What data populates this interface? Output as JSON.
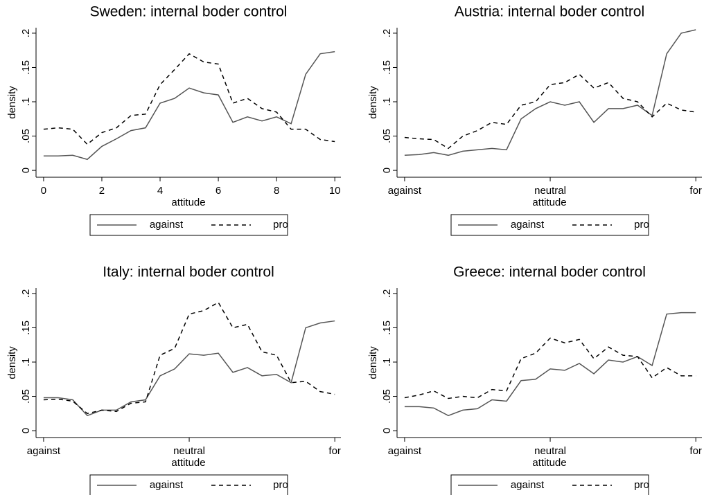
{
  "chart_data": [
    {
      "type": "line",
      "title": "Sweden: internal boder control",
      "xlabel": "attitude",
      "ylabel": "density",
      "x": [
        0,
        0.5,
        1,
        1.5,
        2,
        2.5,
        3,
        3.5,
        4,
        4.5,
        5,
        5.5,
        6,
        6.5,
        7,
        7.5,
        8,
        8.5,
        9,
        9.5,
        10
      ],
      "xlim": [
        -0.26,
        10.21
      ],
      "xticks": [
        0,
        2,
        4,
        6,
        8,
        10
      ],
      "ylim": [
        -0.01,
        0.208
      ],
      "yticks": [
        0,
        {
          "value": 0.05,
          "label": ".05"
        },
        {
          "value": 0.1,
          "label": ".1"
        },
        {
          "value": 0.15,
          "label": ".15"
        },
        {
          "value": 0.2,
          "label": ".2"
        }
      ],
      "series": [
        {
          "name": "against",
          "color": "#555555",
          "style": "solid",
          "values": [
            0.021,
            0.021,
            0.022,
            0.016,
            0.035,
            0.046,
            0.058,
            0.062,
            0.098,
            0.105,
            0.12,
            0.113,
            0.11,
            0.07,
            0.078,
            0.072,
            0.078,
            0.068,
            0.14,
            0.17,
            0.173
          ]
        },
        {
          "name": "pro",
          "color": "#000000",
          "style": "dashed",
          "values": [
            0.06,
            0.062,
            0.06,
            0.038,
            0.055,
            0.062,
            0.08,
            0.082,
            0.125,
            0.147,
            0.17,
            0.158,
            0.155,
            0.098,
            0.105,
            0.09,
            0.085,
            0.06,
            0.06,
            0.045,
            0.042
          ]
        }
      ]
    },
    {
      "type": "line",
      "title": "Austria: internal boder control",
      "xlabel": "attitude",
      "ylabel": "density",
      "x": [
        0,
        0.5,
        1,
        1.5,
        2,
        2.5,
        3,
        3.5,
        4,
        4.5,
        5,
        5.5,
        6,
        6.5,
        7,
        7.5,
        8,
        8.5,
        9,
        9.5,
        10
      ],
      "xlim": [
        -0.26,
        10.21
      ],
      "xticks": [
        {
          "value": 0,
          "label": "against"
        },
        {
          "value": 5,
          "label": "neutral"
        },
        {
          "value": 10,
          "label": "for"
        }
      ],
      "ylim": [
        -0.01,
        0.208
      ],
      "yticks": [
        0,
        {
          "value": 0.05,
          "label": ".05"
        },
        {
          "value": 0.1,
          "label": ".1"
        },
        {
          "value": 0.15,
          "label": ".15"
        },
        {
          "value": 0.2,
          "label": ".2"
        }
      ],
      "series": [
        {
          "name": "against",
          "color": "#555555",
          "style": "solid",
          "values": [
            0.022,
            0.023,
            0.026,
            0.022,
            0.028,
            0.03,
            0.032,
            0.03,
            0.075,
            0.09,
            0.1,
            0.095,
            0.1,
            0.07,
            0.09,
            0.09,
            0.095,
            0.08,
            0.17,
            0.2,
            0.205
          ]
        },
        {
          "name": "pro",
          "color": "#000000",
          "style": "dashed",
          "values": [
            0.048,
            0.046,
            0.045,
            0.032,
            0.05,
            0.058,
            0.07,
            0.067,
            0.095,
            0.1,
            0.125,
            0.128,
            0.14,
            0.12,
            0.128,
            0.105,
            0.1,
            0.078,
            0.098,
            0.088,
            0.085
          ]
        }
      ]
    },
    {
      "type": "line",
      "title": "Italy: internal boder control",
      "xlabel": "attitude",
      "ylabel": "density",
      "x": [
        0,
        0.5,
        1,
        1.5,
        2,
        2.5,
        3,
        3.5,
        4,
        4.5,
        5,
        5.5,
        6,
        6.5,
        7,
        7.5,
        8,
        8.5,
        9,
        9.5,
        10
      ],
      "xlim": [
        -0.26,
        10.21
      ],
      "xticks": [
        {
          "value": 0,
          "label": "against"
        },
        {
          "value": 5,
          "label": "neutral"
        },
        {
          "value": 10,
          "label": "for"
        }
      ],
      "ylim": [
        -0.01,
        0.208
      ],
      "yticks": [
        0,
        {
          "value": 0.05,
          "label": ".05"
        },
        {
          "value": 0.1,
          "label": ".1"
        },
        {
          "value": 0.15,
          "label": ".15"
        },
        {
          "value": 0.2,
          "label": ".2"
        }
      ],
      "series": [
        {
          "name": "against",
          "color": "#555555",
          "style": "solid",
          "values": [
            0.048,
            0.048,
            0.045,
            0.022,
            0.03,
            0.03,
            0.042,
            0.045,
            0.08,
            0.09,
            0.112,
            0.11,
            0.113,
            0.085,
            0.092,
            0.08,
            0.082,
            0.07,
            0.15,
            0.157,
            0.16
          ]
        },
        {
          "name": "pro",
          "color": "#000000",
          "style": "dashed",
          "values": [
            0.045,
            0.046,
            0.043,
            0.025,
            0.03,
            0.028,
            0.04,
            0.042,
            0.11,
            0.12,
            0.17,
            0.175,
            0.187,
            0.15,
            0.155,
            0.115,
            0.11,
            0.07,
            0.072,
            0.057,
            0.053
          ]
        }
      ]
    },
    {
      "type": "line",
      "title": "Greece: internal boder control",
      "xlabel": "attitude",
      "ylabel": "density",
      "x": [
        0,
        0.5,
        1,
        1.5,
        2,
        2.5,
        3,
        3.5,
        4,
        4.5,
        5,
        5.5,
        6,
        6.5,
        7,
        7.5,
        8,
        8.5,
        9,
        9.5,
        10
      ],
      "xlim": [
        -0.26,
        10.21
      ],
      "xticks": [
        {
          "value": 0,
          "label": "against"
        },
        {
          "value": 5,
          "label": "neutral"
        },
        {
          "value": 10,
          "label": "for"
        }
      ],
      "ylim": [
        -0.01,
        0.208
      ],
      "yticks": [
        0,
        {
          "value": 0.05,
          "label": ".05"
        },
        {
          "value": 0.1,
          "label": ".1"
        },
        {
          "value": 0.15,
          "label": ".15"
        },
        {
          "value": 0.2,
          "label": ".2"
        }
      ],
      "series": [
        {
          "name": "against",
          "color": "#555555",
          "style": "solid",
          "values": [
            0.035,
            0.035,
            0.033,
            0.022,
            0.03,
            0.032,
            0.045,
            0.043,
            0.073,
            0.075,
            0.09,
            0.088,
            0.098,
            0.083,
            0.103,
            0.1,
            0.108,
            0.095,
            0.17,
            0.172,
            0.172
          ]
        },
        {
          "name": "pro",
          "color": "#000000",
          "style": "dashed",
          "values": [
            0.048,
            0.052,
            0.058,
            0.047,
            0.05,
            0.048,
            0.06,
            0.058,
            0.105,
            0.113,
            0.135,
            0.128,
            0.133,
            0.105,
            0.122,
            0.11,
            0.108,
            0.077,
            0.092,
            0.08,
            0.08
          ]
        }
      ]
    }
  ]
}
